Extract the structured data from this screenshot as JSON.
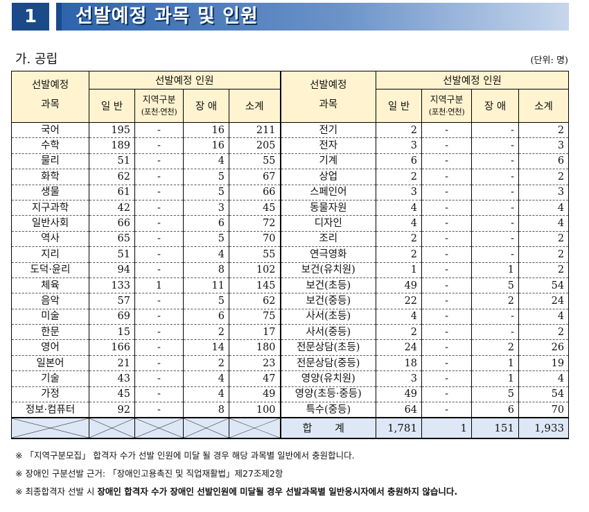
{
  "header": {
    "number": "1",
    "title": "선발예정 과목 및 인원"
  },
  "section": {
    "subtitle": "가. 공립",
    "unit": "(단위: 명)"
  },
  "table": {
    "headers": {
      "subject_line1": "선발예정",
      "subject_line2": "과목",
      "group": "선발예정 인원",
      "general": "일 반",
      "region_line1": "지역구분",
      "region_line2": "(포천·연천)",
      "disabled": "장 애",
      "subtotal": "소계"
    },
    "left_rows": [
      {
        "subject": "국어",
        "general": "195",
        "region": "-",
        "disabled": "16",
        "subtotal": "211"
      },
      {
        "subject": "수학",
        "general": "189",
        "region": "-",
        "disabled": "16",
        "subtotal": "205"
      },
      {
        "subject": "물리",
        "general": "51",
        "region": "-",
        "disabled": "4",
        "subtotal": "55"
      },
      {
        "subject": "화학",
        "general": "62",
        "region": "-",
        "disabled": "5",
        "subtotal": "67"
      },
      {
        "subject": "생물",
        "general": "61",
        "region": "-",
        "disabled": "5",
        "subtotal": "66"
      },
      {
        "subject": "지구과학",
        "general": "42",
        "region": "-",
        "disabled": "3",
        "subtotal": "45"
      },
      {
        "subject": "일반사회",
        "general": "66",
        "region": "-",
        "disabled": "6",
        "subtotal": "72"
      },
      {
        "subject": "역사",
        "general": "65",
        "region": "-",
        "disabled": "5",
        "subtotal": "70"
      },
      {
        "subject": "지리",
        "general": "51",
        "region": "-",
        "disabled": "4",
        "subtotal": "55"
      },
      {
        "subject": "도덕·윤리",
        "general": "94",
        "region": "-",
        "disabled": "8",
        "subtotal": "102"
      },
      {
        "subject": "체육",
        "general": "133",
        "region": "1",
        "disabled": "11",
        "subtotal": "145"
      },
      {
        "subject": "음악",
        "general": "57",
        "region": "-",
        "disabled": "5",
        "subtotal": "62"
      },
      {
        "subject": "미술",
        "general": "69",
        "region": "-",
        "disabled": "6",
        "subtotal": "75"
      },
      {
        "subject": "한문",
        "general": "15",
        "region": "-",
        "disabled": "2",
        "subtotal": "17"
      },
      {
        "subject": "영어",
        "general": "166",
        "region": "-",
        "disabled": "14",
        "subtotal": "180"
      },
      {
        "subject": "일본어",
        "general": "21",
        "region": "-",
        "disabled": "2",
        "subtotal": "23"
      },
      {
        "subject": "기술",
        "general": "43",
        "region": "-",
        "disabled": "4",
        "subtotal": "47"
      },
      {
        "subject": "가정",
        "general": "45",
        "region": "-",
        "disabled": "4",
        "subtotal": "49"
      },
      {
        "subject": "정보·컴퓨터",
        "general": "92",
        "region": "-",
        "disabled": "8",
        "subtotal": "100"
      }
    ],
    "right_rows": [
      {
        "subject": "전기",
        "general": "2",
        "region": "-",
        "disabled": "-",
        "subtotal": "2"
      },
      {
        "subject": "전자",
        "general": "3",
        "region": "-",
        "disabled": "-",
        "subtotal": "3"
      },
      {
        "subject": "기계",
        "general": "6",
        "region": "-",
        "disabled": "-",
        "subtotal": "6"
      },
      {
        "subject": "상업",
        "general": "2",
        "region": "-",
        "disabled": "-",
        "subtotal": "2"
      },
      {
        "subject": "스페인어",
        "general": "3",
        "region": "-",
        "disabled": "-",
        "subtotal": "3"
      },
      {
        "subject": "동물자원",
        "general": "4",
        "region": "-",
        "disabled": "-",
        "subtotal": "4"
      },
      {
        "subject": "디자인",
        "general": "4",
        "region": "-",
        "disabled": "-",
        "subtotal": "4"
      },
      {
        "subject": "조리",
        "general": "2",
        "region": "-",
        "disabled": "-",
        "subtotal": "2"
      },
      {
        "subject": "연극영화",
        "general": "2",
        "region": "-",
        "disabled": "-",
        "subtotal": "2"
      },
      {
        "subject": "보건(유치원)",
        "general": "1",
        "region": "-",
        "disabled": "1",
        "subtotal": "2"
      },
      {
        "subject": "보건(초등)",
        "general": "49",
        "region": "-",
        "disabled": "5",
        "subtotal": "54"
      },
      {
        "subject": "보건(중등)",
        "general": "22",
        "region": "-",
        "disabled": "2",
        "subtotal": "24"
      },
      {
        "subject": "사서(초등)",
        "general": "4",
        "region": "-",
        "disabled": "-",
        "subtotal": "4"
      },
      {
        "subject": "사서(중등)",
        "general": "2",
        "region": "-",
        "disabled": "-",
        "subtotal": "2"
      },
      {
        "subject": "전문상담(초등)",
        "general": "24",
        "region": "-",
        "disabled": "2",
        "subtotal": "26"
      },
      {
        "subject": "전문상담(중등)",
        "general": "18",
        "region": "-",
        "disabled": "1",
        "subtotal": "19"
      },
      {
        "subject": "영양(유치원)",
        "general": "3",
        "region": "-",
        "disabled": "1",
        "subtotal": "4"
      },
      {
        "subject": "영양(초등·중등)",
        "general": "49",
        "region": "-",
        "disabled": "5",
        "subtotal": "54"
      },
      {
        "subject": "특수(중등)",
        "general": "64",
        "region": "-",
        "disabled": "6",
        "subtotal": "70"
      }
    ],
    "total": {
      "label": "합 계",
      "general": "1,781",
      "region": "1",
      "disabled": "151",
      "subtotal": "1,933"
    }
  },
  "notes": {
    "line1": "※ 「지역구분모집」 합격자 수가 선발 인원에 미달 될 경우 해당 과목별 일반에서 충원합니다.",
    "line2": "※ 장애인 구분선발 근거: 「장애인고용촉진 및 직업재활법」제27조제2항",
    "line3_prefix": "※ 최종합격자 선발 시 ",
    "line3_bold": "장애인 합격자 수가 장애인 선발인원에 미달될 경우 선발과목별 일반응시자에서 충원하지 않습니다."
  }
}
